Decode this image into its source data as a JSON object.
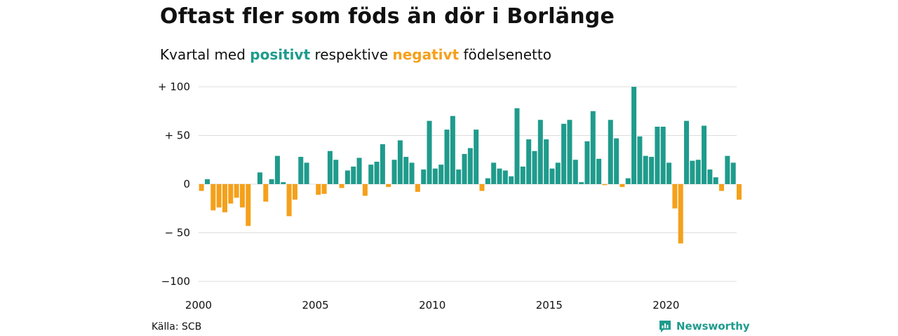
{
  "header": {
    "title": "Oftast fler som föds än dör i Borlänge",
    "subtitle_prefix": "Kvartal med",
    "subtitle_positive": "positivt",
    "subtitle_mid": "respektive",
    "subtitle_negative": "negativt",
    "subtitle_suffix": "födelsenetto"
  },
  "footer": {
    "source": "Källa: SCB",
    "brand": "Newsworthy",
    "brand_icon": "newsworthy-logo-icon"
  },
  "colors": {
    "positive": "#1f9b8c",
    "negative": "#f5a01a",
    "grid": "#dddddd"
  },
  "chart_data": {
    "type": "bar",
    "title": "Oftast fler som föds än dör i Borlänge",
    "subtitle": "Kvartal med positivt respektive negativt födelsenetto",
    "xlabel": "",
    "ylabel": "",
    "ylim": [
      -100,
      100
    ],
    "y_ticks": [
      100,
      50,
      0,
      -50,
      -100
    ],
    "y_tick_labels": [
      "+ 100",
      "+  50",
      "0",
      "− 50",
      "−100"
    ],
    "x_tick_labels": [
      "2000",
      "2005",
      "2010",
      "2015",
      "2020"
    ],
    "x_start_year": 2000,
    "grid": true,
    "legend": "none",
    "values": [
      -7,
      5,
      -27,
      -24,
      -29,
      -20,
      -14,
      -24,
      -43,
      0,
      12,
      -18,
      5,
      29,
      2,
      -33,
      -16,
      28,
      22,
      0,
      -11,
      -10,
      34,
      25,
      -4,
      14,
      18,
      27,
      -12,
      20,
      23,
      41,
      -3,
      25,
      45,
      28,
      22,
      -8,
      15,
      65,
      16,
      20,
      56,
      70,
      15,
      31,
      37,
      56,
      -7,
      6,
      22,
      16,
      14,
      8,
      78,
      18,
      46,
      34,
      66,
      46,
      16,
      22,
      62,
      66,
      25,
      2,
      44,
      75,
      26,
      -1,
      66,
      47,
      -3,
      6,
      100,
      49,
      29,
      28,
      59,
      59,
      22,
      -25,
      -61,
      65,
      24,
      25,
      60,
      15,
      7,
      -7,
      29,
      22,
      -16
    ]
  }
}
